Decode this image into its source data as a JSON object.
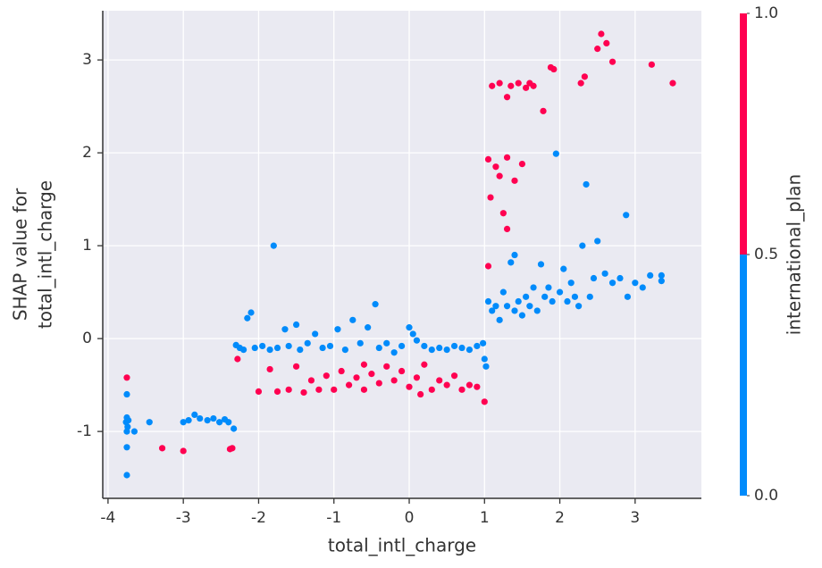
{
  "chart_data": {
    "type": "scatter",
    "xlabel": "total_intl_charge",
    "ylabel": [
      "SHAP value for",
      "total_intl_charge"
    ],
    "colorbar_label": "international_plan",
    "colors": [
      "#008BFB",
      "#FF0051"
    ],
    "clim": [
      0,
      1
    ],
    "cticks": [
      {
        "value": 0,
        "label": "0.0"
      },
      {
        "value": 0.5,
        "label": "0.5"
      },
      {
        "value": 1,
        "label": "1.0"
      }
    ],
    "xlim": [
      -4.07,
      3.88
    ],
    "ylim": [
      -1.72,
      3.53
    ],
    "xticks": [
      -4,
      -3,
      -2,
      -1,
      0,
      1,
      2,
      3
    ],
    "yticks": [
      -1,
      0,
      1,
      2,
      3
    ],
    "grid": true,
    "x": [
      -3.75,
      -3.75,
      -3.75,
      -3.76,
      -3.74,
      -3.75,
      -3.73,
      -3.75,
      -3.75,
      -3.65,
      -3.45,
      -3.28,
      -3.0,
      -3.0,
      -2.93,
      -2.85,
      -2.78,
      -2.68,
      -2.6,
      -2.52,
      -2.45,
      -2.4,
      -2.38,
      -2.35,
      -2.33,
      -2.3,
      -2.25,
      -2.2,
      -2.28,
      -2.15,
      -2.1,
      -2.05,
      -1.95,
      -1.85,
      -1.8,
      -1.75,
      -1.65,
      -1.6,
      -1.5,
      -1.45,
      -1.35,
      -1.25,
      -1.15,
      -1.05,
      -0.95,
      -0.85,
      -0.75,
      -0.65,
      -0.55,
      -0.45,
      -0.4,
      -0.3,
      -0.2,
      -0.1,
      0.0,
      0.05,
      0.1,
      0.2,
      0.3,
      0.4,
      0.5,
      0.6,
      0.7,
      0.8,
      0.9,
      0.98,
      1.0,
      1.02,
      -2.0,
      -1.85,
      -1.75,
      -1.6,
      -1.5,
      -1.4,
      -1.3,
      -1.2,
      -1.1,
      -1.0,
      -0.9,
      -0.8,
      -0.7,
      -0.6,
      -0.5,
      -0.4,
      -0.3,
      -0.2,
      -0.1,
      0.0,
      0.1,
      0.2,
      0.3,
      0.4,
      0.5,
      0.6,
      0.7,
      0.8,
      0.9,
      1.0,
      -0.6,
      0.15,
      1.05,
      1.05,
      1.08,
      1.1,
      1.15,
      1.2,
      1.25,
      1.3,
      1.35,
      1.4,
      1.45,
      1.5,
      1.55,
      1.6,
      1.65,
      1.78,
      1.88,
      1.92,
      2.28,
      2.33,
      2.5,
      2.55,
      2.62,
      2.7,
      3.22,
      3.5,
      1.2,
      1.3,
      1.05,
      1.1,
      1.15,
      1.2,
      1.25,
      1.3,
      1.35,
      1.4,
      1.45,
      1.5,
      1.55,
      1.6,
      1.65,
      1.7,
      1.75,
      1.8,
      1.85,
      1.9,
      1.95,
      2.0,
      2.05,
      2.1,
      2.15,
      2.2,
      2.25,
      2.3,
      2.35,
      2.4,
      2.45,
      2.5,
      2.6,
      2.7,
      2.8,
      2.88,
      2.9,
      3.0,
      3.1,
      3.2,
      3.35,
      3.35,
      1.3,
      1.4
    ],
    "y": [
      -0.42,
      -0.6,
      -0.85,
      -0.9,
      -0.95,
      -1.0,
      -0.88,
      -1.17,
      -1.47,
      -1.0,
      -0.9,
      -1.18,
      -1.21,
      -0.9,
      -0.88,
      -0.82,
      -0.86,
      -0.88,
      -0.86,
      -0.9,
      -0.87,
      -0.9,
      -1.19,
      -1.18,
      -0.97,
      -0.07,
      -0.1,
      -0.12,
      -0.22,
      0.22,
      0.28,
      -0.1,
      -0.08,
      -0.12,
      1.0,
      -0.1,
      0.1,
      -0.08,
      0.15,
      -0.12,
      -0.05,
      0.05,
      -0.1,
      -0.08,
      0.1,
      -0.12,
      0.2,
      -0.05,
      0.12,
      0.37,
      -0.1,
      -0.05,
      -0.15,
      -0.08,
      0.12,
      0.05,
      -0.02,
      -0.08,
      -0.12,
      -0.1,
      -0.12,
      -0.08,
      -0.1,
      -0.12,
      -0.08,
      -0.05,
      -0.22,
      -0.3,
      -0.57,
      -0.33,
      -0.57,
      -0.55,
      -0.3,
      -0.58,
      -0.45,
      -0.55,
      -0.4,
      -0.55,
      -0.35,
      -0.5,
      -0.42,
      -0.55,
      -0.38,
      -0.48,
      -0.3,
      -0.45,
      -0.35,
      -0.52,
      -0.42,
      -0.28,
      -0.55,
      -0.45,
      -0.5,
      -0.4,
      -0.55,
      -0.5,
      -0.52,
      -0.68,
      -0.28,
      -0.6,
      0.78,
      1.93,
      1.52,
      2.72,
      1.85,
      2.75,
      1.35,
      1.95,
      2.72,
      1.7,
      2.75,
      1.88,
      2.7,
      2.75,
      2.72,
      2.45,
      2.92,
      2.9,
      2.75,
      2.82,
      3.12,
      3.28,
      3.18,
      2.98,
      2.95,
      2.75,
      1.75,
      2.6,
      0.4,
      0.3,
      0.35,
      0.2,
      0.5,
      0.35,
      0.82,
      0.3,
      0.4,
      0.25,
      0.45,
      0.35,
      0.55,
      0.3,
      0.8,
      0.45,
      0.55,
      0.4,
      1.99,
      0.5,
      0.75,
      0.4,
      0.6,
      0.45,
      0.35,
      1.0,
      1.66,
      0.45,
      0.65,
      1.05,
      0.7,
      0.6,
      0.65,
      1.33,
      0.45,
      0.6,
      0.55,
      0.68,
      0.62,
      0.68,
      1.18,
      0.9
    ],
    "c": [
      1,
      0,
      0,
      0,
      0,
      0,
      0,
      0,
      0,
      0,
      0,
      1,
      1,
      0,
      0,
      0,
      0,
      0,
      0,
      0,
      0,
      0,
      1,
      1,
      0,
      0,
      0,
      0,
      1,
      0,
      0,
      0,
      0,
      0,
      0,
      0,
      0,
      0,
      0,
      0,
      0,
      0,
      0,
      0,
      0,
      0,
      0,
      0,
      0,
      0,
      0,
      0,
      0,
      0,
      0,
      0,
      0,
      0,
      0,
      0,
      0,
      0,
      0,
      0,
      0,
      0,
      0,
      0,
      1,
      1,
      1,
      1,
      1,
      1,
      1,
      1,
      1,
      1,
      1,
      1,
      1,
      1,
      1,
      1,
      1,
      1,
      1,
      1,
      1,
      1,
      1,
      1,
      1,
      1,
      1,
      1,
      1,
      1,
      1,
      1,
      1,
      1,
      1,
      1,
      1,
      1,
      1,
      1,
      1,
      1,
      1,
      1,
      1,
      1,
      1,
      1,
      1,
      1,
      1,
      1,
      1,
      1,
      1,
      1,
      1,
      1,
      1,
      1,
      0,
      0,
      0,
      0,
      0,
      0,
      0,
      0,
      0,
      0,
      0,
      0,
      0,
      0,
      0,
      0,
      0,
      0,
      0,
      0,
      0,
      0,
      0,
      0,
      0,
      0,
      0,
      0,
      0,
      0,
      0,
      0,
      0,
      0,
      0,
      0,
      0,
      0,
      0,
      0,
      1,
      0
    ]
  }
}
